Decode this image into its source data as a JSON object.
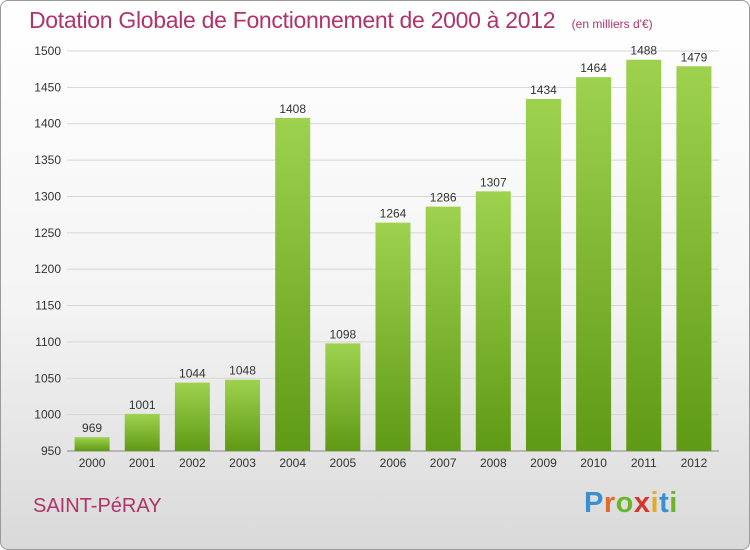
{
  "header": {
    "title": "Dotation Globale de Fonctionnement de 2000 à 2012",
    "unit": "(en milliers d'€)"
  },
  "footer": {
    "commune": "SAINT-PéRAY",
    "brand": "Proxiti",
    "brand_colors": [
      "#3a8fd0",
      "#e06a2b",
      "#6cb52a",
      "#d8332c",
      "#e3a928",
      "#3a8fd0",
      "#6cb52a"
    ]
  },
  "colors": {
    "bar_light": "#9ed24e",
    "bar_dark": "#5f9a14",
    "title": "#b0336b",
    "grid": "#d6d6d6",
    "axis_text": "#333333"
  },
  "chart_data": {
    "type": "bar",
    "categories": [
      "2000",
      "2001",
      "2002",
      "2003",
      "2004",
      "2005",
      "2006",
      "2007",
      "2008",
      "2009",
      "2010",
      "2011",
      "2012"
    ],
    "values": [
      969,
      1001,
      1044,
      1048,
      1408,
      1098,
      1264,
      1286,
      1307,
      1434,
      1464,
      1488,
      1479
    ],
    "ylim": [
      950,
      1500
    ],
    "yticks": [
      950,
      1000,
      1050,
      1100,
      1150,
      1200,
      1250,
      1300,
      1350,
      1400,
      1450,
      1500
    ],
    "grid": true,
    "data_labels": true
  }
}
